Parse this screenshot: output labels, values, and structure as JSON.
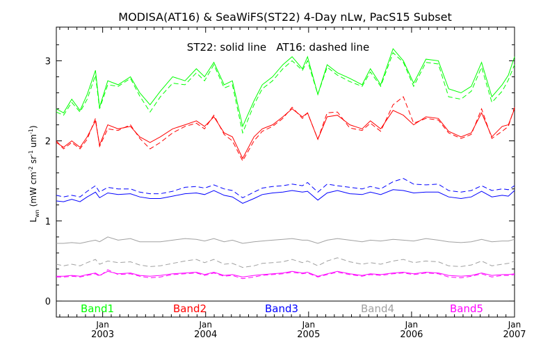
{
  "chart_data": {
    "type": "line",
    "title": "MODISA(AT16) & SeaWiFS(ST22) 4-Day nLw, PacS15 Subset",
    "annotation": "ST22: solid line   AT16: dashed line",
    "ylabel": "L_wn (mW cm^-2 sr^-1 um^-1)",
    "ylabel_parts": {
      "main": "L",
      "sub": "wn",
      "unit_open": "(mW cm",
      "exp1": "-2",
      "sr": " sr",
      "exp2": "-1",
      "um": " um",
      "exp3": "-1",
      "close": ")"
    },
    "ylim": [
      -0.2,
      3.42
    ],
    "yticks": [
      0,
      1,
      2,
      3
    ],
    "xlim": [
      2002.55,
      2007.0
    ],
    "xticks": [
      {
        "x": 2003.0,
        "month": "Jan",
        "year": "2003"
      },
      {
        "x": 2004.0,
        "month": "Jan",
        "year": "2004"
      },
      {
        "x": 2005.0,
        "month": "Jan",
        "year": "2005"
      },
      {
        "x": 2006.0,
        "month": "Jan",
        "year": "2006"
      },
      {
        "x": 2007.0,
        "month": "Jan",
        "year": "2007"
      }
    ],
    "grid": false,
    "legend_position": "bottom inside plot",
    "line_styles": {
      "solid": "ST22 (SeaWiFS)",
      "dashed": "AT16 (MODISA)"
    },
    "series": [
      {
        "name": "Band1",
        "color": "#00ff00",
        "x": [
          2002.55,
          2002.62,
          2002.7,
          2002.78,
          2002.85,
          2002.93,
          2002.97,
          2003.05,
          2003.15,
          2003.27,
          2003.36,
          2003.46,
          2003.56,
          2003.68,
          2003.8,
          2003.91,
          2003.99,
          2004.08,
          2004.18,
          2004.26,
          2004.36,
          2004.47,
          2004.55,
          2004.65,
          2004.75,
          2004.84,
          2004.94,
          2004.99,
          2005.09,
          2005.18,
          2005.28,
          2005.4,
          2005.52,
          2005.6,
          2005.7,
          2005.82,
          2005.92,
          2006.02,
          2006.14,
          2006.26,
          2006.36,
          2006.48,
          2006.58,
          2006.68,
          2006.78,
          2006.88,
          2006.94,
          2007.0
        ],
        "solid": [
          2.4,
          2.35,
          2.52,
          2.38,
          2.58,
          2.88,
          2.42,
          2.75,
          2.7,
          2.8,
          2.6,
          2.45,
          2.62,
          2.8,
          2.75,
          2.9,
          2.8,
          2.98,
          2.7,
          2.75,
          2.18,
          2.5,
          2.7,
          2.8,
          2.95,
          3.05,
          2.9,
          3.05,
          2.58,
          2.95,
          2.85,
          2.78,
          2.7,
          2.9,
          2.7,
          3.15,
          3.0,
          2.72,
          3.02,
          3.0,
          2.65,
          2.6,
          2.68,
          2.98,
          2.55,
          2.7,
          2.82,
          3.05
        ],
        "dashed": [
          2.36,
          2.32,
          2.48,
          2.36,
          2.52,
          2.82,
          2.4,
          2.7,
          2.68,
          2.78,
          2.56,
          2.36,
          2.55,
          2.72,
          2.7,
          2.85,
          2.75,
          2.95,
          2.66,
          2.7,
          2.1,
          2.45,
          2.65,
          2.75,
          2.9,
          3.0,
          2.88,
          3.0,
          2.58,
          2.92,
          2.82,
          2.74,
          2.68,
          2.86,
          2.68,
          3.1,
          2.98,
          2.68,
          2.98,
          2.96,
          2.55,
          2.52,
          2.62,
          2.92,
          2.48,
          2.62,
          2.76,
          2.95
        ]
      },
      {
        "name": "Band2",
        "color": "#ff0000",
        "x": [
          2002.55,
          2002.62,
          2002.7,
          2002.78,
          2002.85,
          2002.93,
          2002.97,
          2003.05,
          2003.15,
          2003.27,
          2003.36,
          2003.46,
          2003.56,
          2003.68,
          2003.8,
          2003.91,
          2003.99,
          2004.08,
          2004.18,
          2004.26,
          2004.36,
          2004.47,
          2004.55,
          2004.65,
          2004.75,
          2004.84,
          2004.94,
          2004.99,
          2005.09,
          2005.18,
          2005.28,
          2005.4,
          2005.52,
          2005.6,
          2005.7,
          2005.82,
          2005.92,
          2006.02,
          2006.14,
          2006.26,
          2006.36,
          2006.48,
          2006.58,
          2006.68,
          2006.78,
          2006.88,
          2006.94,
          2007.0
        ],
        "solid": [
          1.98,
          1.92,
          2.0,
          1.92,
          2.05,
          2.25,
          1.95,
          2.2,
          2.15,
          2.18,
          2.05,
          1.98,
          2.05,
          2.15,
          2.2,
          2.25,
          2.18,
          2.3,
          2.1,
          2.05,
          1.78,
          2.05,
          2.15,
          2.2,
          2.3,
          2.4,
          2.3,
          2.35,
          2.02,
          2.3,
          2.32,
          2.2,
          2.15,
          2.25,
          2.15,
          2.38,
          2.32,
          2.2,
          2.3,
          2.28,
          2.12,
          2.05,
          2.1,
          2.35,
          2.05,
          2.18,
          2.2,
          2.4
        ],
        "dashed": [
          2.0,
          1.9,
          1.98,
          1.9,
          2.02,
          2.28,
          1.93,
          2.15,
          2.13,
          2.2,
          2.03,
          1.9,
          1.98,
          2.1,
          2.18,
          2.22,
          2.15,
          2.32,
          2.08,
          2.0,
          1.75,
          2.0,
          2.12,
          2.18,
          2.28,
          2.42,
          2.28,
          2.35,
          2.02,
          2.35,
          2.36,
          2.16,
          2.13,
          2.22,
          2.12,
          2.45,
          2.55,
          2.22,
          2.28,
          2.26,
          2.1,
          2.03,
          2.08,
          2.4,
          2.03,
          2.12,
          2.18,
          2.42
        ]
      },
      {
        "name": "Band3",
        "color": "#0000ff",
        "x": [
          2002.55,
          2002.62,
          2002.7,
          2002.78,
          2002.85,
          2002.93,
          2002.97,
          2003.05,
          2003.15,
          2003.27,
          2003.36,
          2003.46,
          2003.56,
          2003.68,
          2003.8,
          2003.91,
          2003.99,
          2004.08,
          2004.18,
          2004.26,
          2004.36,
          2004.47,
          2004.55,
          2004.65,
          2004.75,
          2004.84,
          2004.94,
          2004.99,
          2005.09,
          2005.18,
          2005.28,
          2005.4,
          2005.52,
          2005.6,
          2005.7,
          2005.82,
          2005.92,
          2006.02,
          2006.14,
          2006.26,
          2006.36,
          2006.48,
          2006.58,
          2006.68,
          2006.78,
          2006.88,
          2006.94,
          2007.0
        ],
        "solid": [
          1.25,
          1.24,
          1.27,
          1.24,
          1.3,
          1.36,
          1.29,
          1.35,
          1.33,
          1.34,
          1.3,
          1.28,
          1.28,
          1.31,
          1.34,
          1.35,
          1.33,
          1.38,
          1.32,
          1.3,
          1.22,
          1.28,
          1.33,
          1.35,
          1.36,
          1.38,
          1.36,
          1.37,
          1.26,
          1.35,
          1.38,
          1.34,
          1.33,
          1.36,
          1.33,
          1.39,
          1.38,
          1.35,
          1.36,
          1.36,
          1.3,
          1.28,
          1.3,
          1.37,
          1.3,
          1.32,
          1.31,
          1.38
        ],
        "dashed": [
          1.32,
          1.3,
          1.32,
          1.3,
          1.37,
          1.44,
          1.36,
          1.42,
          1.4,
          1.4,
          1.36,
          1.34,
          1.34,
          1.37,
          1.42,
          1.43,
          1.41,
          1.45,
          1.4,
          1.38,
          1.29,
          1.36,
          1.41,
          1.43,
          1.44,
          1.46,
          1.44,
          1.48,
          1.36,
          1.46,
          1.44,
          1.42,
          1.4,
          1.43,
          1.4,
          1.49,
          1.53,
          1.46,
          1.45,
          1.46,
          1.38,
          1.36,
          1.38,
          1.44,
          1.38,
          1.4,
          1.39,
          1.44
        ]
      },
      {
        "name": "Band4",
        "color": "#a0a0a0",
        "x": [
          2002.55,
          2002.62,
          2002.7,
          2002.78,
          2002.85,
          2002.93,
          2002.97,
          2003.05,
          2003.15,
          2003.27,
          2003.36,
          2003.46,
          2003.56,
          2003.68,
          2003.8,
          2003.91,
          2003.99,
          2004.08,
          2004.18,
          2004.26,
          2004.36,
          2004.47,
          2004.55,
          2004.65,
          2004.75,
          2004.84,
          2004.94,
          2004.99,
          2005.09,
          2005.18,
          2005.28,
          2005.4,
          2005.52,
          2005.6,
          2005.7,
          2005.82,
          2005.92,
          2006.02,
          2006.14,
          2006.26,
          2006.36,
          2006.48,
          2006.58,
          2006.68,
          2006.78,
          2006.88,
          2006.94,
          2007.0
        ],
        "solid": [
          0.72,
          0.72,
          0.73,
          0.72,
          0.74,
          0.76,
          0.74,
          0.8,
          0.76,
          0.78,
          0.74,
          0.74,
          0.74,
          0.76,
          0.78,
          0.77,
          0.75,
          0.78,
          0.74,
          0.76,
          0.72,
          0.74,
          0.75,
          0.76,
          0.77,
          0.78,
          0.76,
          0.76,
          0.72,
          0.76,
          0.78,
          0.76,
          0.74,
          0.76,
          0.75,
          0.77,
          0.76,
          0.75,
          0.78,
          0.76,
          0.74,
          0.73,
          0.74,
          0.77,
          0.74,
          0.75,
          0.75,
          0.77
        ],
        "dashed": [
          0.46,
          0.44,
          0.46,
          0.44,
          0.48,
          0.52,
          0.46,
          0.5,
          0.48,
          0.49,
          0.45,
          0.43,
          0.44,
          0.47,
          0.5,
          0.52,
          0.48,
          0.52,
          0.46,
          0.47,
          0.42,
          0.44,
          0.47,
          0.48,
          0.49,
          0.52,
          0.48,
          0.5,
          0.44,
          0.5,
          0.54,
          0.49,
          0.46,
          0.48,
          0.46,
          0.5,
          0.52,
          0.48,
          0.5,
          0.49,
          0.44,
          0.43,
          0.45,
          0.5,
          0.44,
          0.46,
          0.47,
          0.5
        ]
      },
      {
        "name": "Band5",
        "color": "#ff00ff",
        "x": [
          2002.55,
          2002.62,
          2002.7,
          2002.78,
          2002.85,
          2002.93,
          2002.97,
          2003.05,
          2003.15,
          2003.27,
          2003.36,
          2003.46,
          2003.56,
          2003.68,
          2003.8,
          2003.91,
          2003.99,
          2004.08,
          2004.18,
          2004.26,
          2004.36,
          2004.47,
          2004.55,
          2004.65,
          2004.75,
          2004.84,
          2004.94,
          2004.99,
          2005.09,
          2005.18,
          2005.28,
          2005.4,
          2005.52,
          2005.6,
          2005.7,
          2005.82,
          2005.92,
          2006.02,
          2006.14,
          2006.26,
          2006.36,
          2006.48,
          2006.58,
          2006.68,
          2006.78,
          2006.88,
          2006.94,
          2007.0
        ],
        "solid": [
          0.31,
          0.31,
          0.32,
          0.31,
          0.33,
          0.35,
          0.32,
          0.37,
          0.34,
          0.35,
          0.32,
          0.31,
          0.32,
          0.34,
          0.35,
          0.36,
          0.33,
          0.36,
          0.32,
          0.33,
          0.3,
          0.32,
          0.33,
          0.34,
          0.35,
          0.37,
          0.35,
          0.36,
          0.31,
          0.34,
          0.37,
          0.34,
          0.32,
          0.34,
          0.33,
          0.35,
          0.36,
          0.34,
          0.36,
          0.35,
          0.32,
          0.31,
          0.32,
          0.35,
          0.32,
          0.33,
          0.33,
          0.34
        ],
        "dashed": [
          0.3,
          0.3,
          0.31,
          0.3,
          0.32,
          0.34,
          0.31,
          0.39,
          0.33,
          0.34,
          0.31,
          0.29,
          0.3,
          0.33,
          0.34,
          0.35,
          0.32,
          0.35,
          0.31,
          0.32,
          0.28,
          0.3,
          0.32,
          0.33,
          0.34,
          0.36,
          0.34,
          0.35,
          0.3,
          0.33,
          0.36,
          0.33,
          0.31,
          0.33,
          0.32,
          0.34,
          0.35,
          0.33,
          0.35,
          0.34,
          0.3,
          0.29,
          0.31,
          0.34,
          0.3,
          0.32,
          0.32,
          0.33
        ]
      }
    ]
  }
}
